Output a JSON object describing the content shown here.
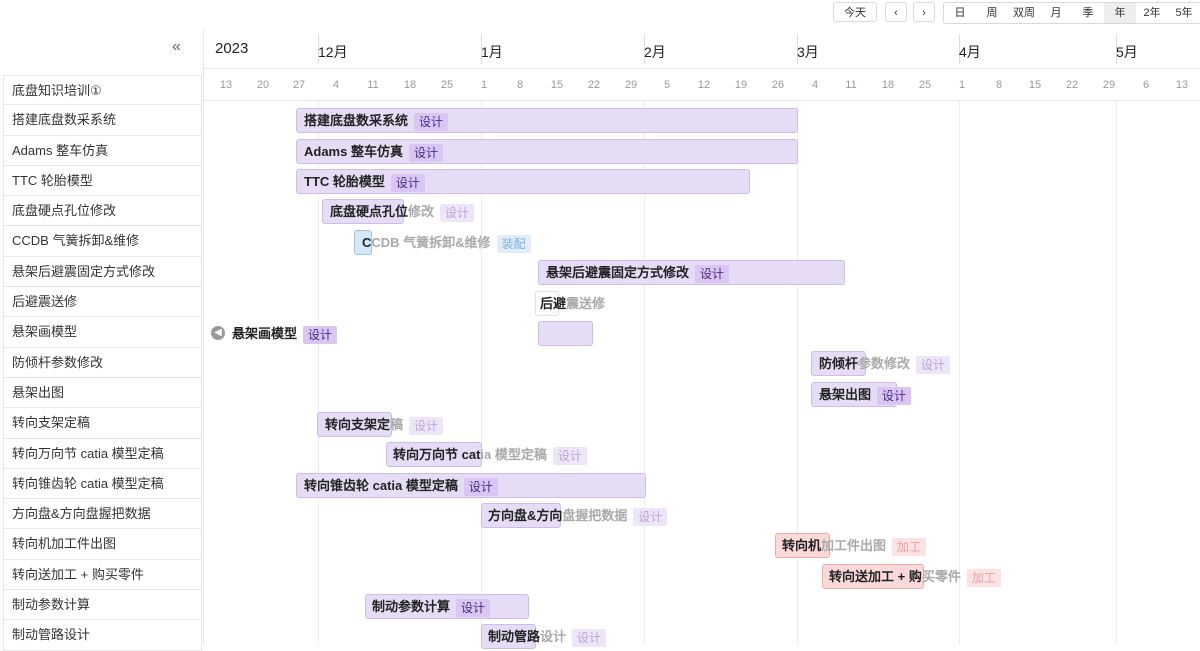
{
  "toolbar": {
    "today": "今天",
    "prev_icon": "chevron-left-icon",
    "next_icon": "chevron-right-icon",
    "views": [
      "日",
      "周",
      "双周",
      "月",
      "季",
      "年",
      "2年",
      "5年"
    ],
    "active_view": "年"
  },
  "sidebar": {
    "collapse_icon": "double-chevron-left-icon",
    "tasks": [
      "底盘知识培训①",
      "搭建底盘数采系统",
      "Adams 整车仿真",
      "TTC 轮胎模型",
      "底盘硬点孔位修改",
      "CCDB 气簧拆卸&维修",
      "悬架后避震固定方式修改",
      "后避震送修",
      "悬架画模型",
      "防倾杆参数修改",
      "悬架出图",
      "转向支架定稿",
      "转向万向节 catia 模型定稿",
      "转向锥齿轮 catia 模型定稿",
      "方向盘&方向盘握把数据",
      "转向机加工件出图",
      "转向送加工 + 购买零件",
      "制动参数计算",
      "制动管路设计"
    ]
  },
  "timeline": {
    "year": "2023",
    "months": [
      "12月",
      "1月",
      "2月",
      "3月",
      "4月",
      "5月"
    ],
    "days": [
      "13",
      "20",
      "27",
      "4",
      "11",
      "18",
      "25",
      "1",
      "8",
      "15",
      "22",
      "29",
      "5",
      "12",
      "19",
      "26",
      "4",
      "11",
      "18",
      "25",
      "1",
      "8",
      "15",
      "22",
      "29",
      "6",
      "13"
    ]
  },
  "bars": [
    {
      "name": "搭建底盘数采系统",
      "tag": "设计",
      "kind": "design"
    },
    {
      "name": "Adams 整车仿真",
      "tag": "设计",
      "kind": "design"
    },
    {
      "name": "TTC 轮胎模型",
      "tag": "设计",
      "kind": "design"
    },
    {
      "name_dark": "底盘硬点孔位",
      "name_light": "修改",
      "tag": "设计",
      "kind": "design"
    },
    {
      "name_dark": "C",
      "name_light": "CDB 气簧拆卸&维修",
      "tag": "装配",
      "kind": "assembly"
    },
    {
      "name": "悬架后避震固定方式修改",
      "tag": "设计",
      "kind": "design"
    },
    {
      "name_dark": "后避",
      "name_light": "震送修",
      "kind": "plain"
    },
    {
      "name": "悬架画模型",
      "tag": "设计",
      "kind": "design"
    },
    {
      "name_dark": "防倾杆",
      "name_light": "参数修改",
      "tag": "设计",
      "kind": "design"
    },
    {
      "name": "悬架出图",
      "tag": "设计",
      "kind": "design"
    },
    {
      "name_dark": "转向支架定",
      "name_light": "稿",
      "tag": "设计",
      "kind": "design"
    },
    {
      "name_dark": "转向万向节 cat",
      "name_light": "ia 模型定稿",
      "tag": "设计",
      "kind": "design"
    },
    {
      "name": "转向锥齿轮 catia 模型定稿",
      "tag": "设计",
      "kind": "design"
    },
    {
      "name_dark": "方向盘&方向",
      "name_light": "盘握把数据",
      "tag": "设计",
      "kind": "design"
    },
    {
      "name_dark": "转向机",
      "name_light": "加工件出图",
      "tag": "加工",
      "kind": "process"
    },
    {
      "name_dark": "转向送加工 + 购",
      "name_light": "买零件",
      "tag": "加工",
      "kind": "process"
    },
    {
      "name": "制动参数计算",
      "tag": "设计",
      "kind": "design"
    },
    {
      "name_dark": "制动管路",
      "name_light": "设计",
      "tag": "设计",
      "kind": "design"
    }
  ],
  "colors": {
    "design_bar": "#e6dcf6",
    "design_tag": "#d9c6f3",
    "assembly_bar": "#d6e8f7",
    "process_bar": "#fbd9d9"
  }
}
